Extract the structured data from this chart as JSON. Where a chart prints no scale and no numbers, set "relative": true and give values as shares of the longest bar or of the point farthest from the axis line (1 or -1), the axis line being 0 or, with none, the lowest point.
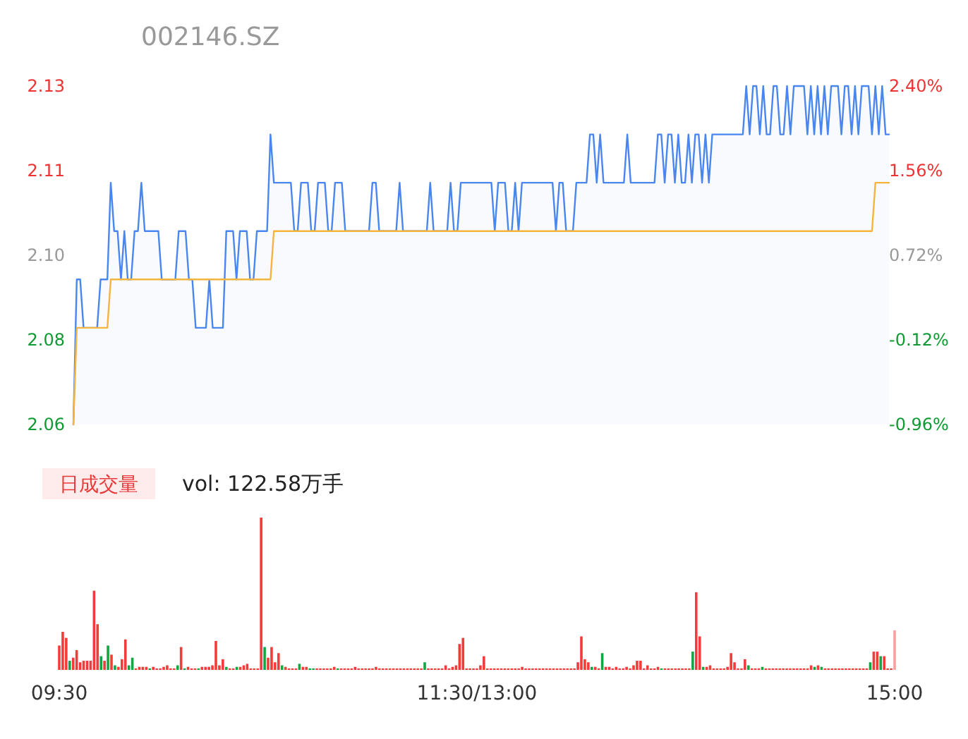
{
  "chart_data": [
    {
      "type": "area",
      "title": "002146.SZ",
      "ylim": [
        2.06,
        2.13
      ],
      "yticks": [
        2.06,
        {
          "value": 2.0775,
          "label": "2.08"
        },
        {
          "value": 2.095,
          "label": "2.10"
        },
        {
          "value": 2.1125,
          "label": "2.11"
        },
        2.13
      ],
      "y2lim": [
        -0.96,
        2.4
      ],
      "y2ticks": [
        {
          "value": -0.96,
          "label": "-0.96%"
        },
        {
          "value": -0.12,
          "label": "-0.12%"
        },
        {
          "value": 0.72,
          "label": "0.72%"
        },
        {
          "value": 1.56,
          "label": "1.56%"
        },
        {
          "value": 2.4,
          "label": "2.40%"
        }
      ],
      "tick_labels": "y",
      "categories": [
        null,
        null,
        null,
        null,
        null,
        null,
        null,
        null,
        null,
        null,
        null,
        null,
        null,
        null,
        null,
        null,
        null,
        null,
        null,
        null,
        null,
        null,
        null,
        null,
        null,
        null,
        null,
        null,
        null,
        null,
        null,
        null,
        null,
        null,
        null,
        null,
        null,
        null,
        null,
        null,
        null,
        null,
        null,
        null,
        null,
        null,
        null,
        null,
        null,
        null,
        null,
        null,
        null,
        null,
        null,
        null,
        null,
        null,
        null,
        null,
        null,
        null,
        null,
        null,
        null,
        null,
        null,
        null,
        null,
        null,
        null,
        null,
        null,
        null,
        null,
        null,
        null,
        null,
        null,
        null,
        null,
        null,
        null,
        null,
        null,
        null,
        null,
        null,
        null,
        null,
        null,
        null,
        null,
        null,
        null,
        null,
        null,
        null,
        null,
        null,
        null,
        null,
        null,
        null,
        null,
        null,
        null,
        null,
        null,
        null,
        null,
        null,
        null,
        null,
        null,
        null,
        null,
        null,
        null,
        null,
        null,
        null,
        null,
        null,
        null,
        null,
        null,
        null,
        null,
        null,
        null,
        null,
        null,
        null,
        null,
        null,
        null,
        null,
        null,
        null,
        null,
        null,
        null,
        null,
        null,
        null,
        null,
        null,
        null,
        null,
        null,
        null,
        null,
        null,
        null,
        null,
        null,
        null,
        null,
        null,
        null,
        null,
        null,
        null,
        null,
        null,
        null,
        null,
        null,
        null,
        null,
        null,
        null,
        null,
        null,
        null,
        null,
        null,
        null,
        null,
        null,
        null,
        null,
        null,
        null,
        null,
        null,
        null,
        null,
        null,
        null,
        null,
        null,
        null,
        null,
        null,
        null,
        null,
        null,
        null,
        null,
        null,
        null,
        null,
        null,
        null,
        null,
        null,
        null,
        null,
        null,
        null,
        null,
        null,
        null,
        null,
        null,
        null,
        null,
        null,
        null,
        null,
        null,
        null,
        null,
        null,
        null,
        null,
        null,
        null,
        null,
        null,
        null,
        null,
        null,
        null,
        null,
        null,
        null,
        null,
        null
      ],
      "series": [
        {
          "type": "area",
          "color": "#4a86f0",
          "values": [
            2.06,
            2.09,
            2.09,
            2.08,
            2.08,
            2.08,
            2.08,
            2.08,
            2.09,
            2.09,
            2.09,
            2.11,
            2.1,
            2.1,
            2.09,
            2.1,
            2.09,
            2.09,
            2.1,
            2.1,
            2.11,
            2.1,
            2.1,
            2.1,
            2.1,
            2.1,
            2.09,
            2.09,
            2.09,
            2.09,
            2.09,
            2.1,
            2.1,
            2.1,
            2.09,
            2.09,
            2.08,
            2.08,
            2.08,
            2.08,
            2.09,
            2.08,
            2.08,
            2.08,
            2.08,
            2.1,
            2.1,
            2.1,
            2.09,
            2.1,
            2.1,
            2.1,
            2.09,
            2.09,
            2.1,
            2.1,
            2.1,
            2.1,
            2.12,
            2.11,
            2.11,
            2.11,
            2.11,
            2.11,
            2.11,
            2.1,
            2.1,
            2.11,
            2.11,
            2.11,
            2.1,
            2.1,
            2.11,
            2.11,
            2.11,
            2.1,
            2.1,
            2.11,
            2.11,
            2.11,
            2.1,
            2.1,
            2.1,
            2.1,
            2.1,
            2.1,
            2.1,
            2.1,
            2.11,
            2.11,
            2.1,
            2.1,
            2.1,
            2.1,
            2.1,
            2.1,
            2.11,
            2.1,
            2.1,
            2.1,
            2.1,
            2.1,
            2.1,
            2.1,
            2.1,
            2.11,
            2.1,
            2.1,
            2.1,
            2.1,
            2.1,
            2.11,
            2.1,
            2.1,
            2.11,
            2.11,
            2.11,
            2.11,
            2.11,
            2.11,
            2.11,
            2.11,
            2.11,
            2.11,
            2.1,
            2.11,
            2.11,
            2.11,
            2.1,
            2.1,
            2.11,
            2.1,
            2.11,
            2.11,
            2.11,
            2.11,
            2.11,
            2.11,
            2.11,
            2.11,
            2.11,
            2.11,
            2.1,
            2.11,
            2.11,
            2.1,
            2.1,
            2.1,
            2.11,
            2.11,
            2.11,
            2.11,
            2.12,
            2.12,
            2.11,
            2.12,
            2.11,
            2.11,
            2.11,
            2.11,
            2.11,
            2.11,
            2.11,
            2.12,
            2.11,
            2.11,
            2.11,
            2.11,
            2.11,
            2.11,
            2.11,
            2.11,
            2.12,
            2.12,
            2.11,
            2.12,
            2.12,
            2.11,
            2.12,
            2.11,
            2.11,
            2.12,
            2.11,
            2.12,
            2.12,
            2.11,
            2.12,
            2.11,
            2.12,
            2.12,
            2.12,
            2.12,
            2.12,
            2.12,
            2.12,
            2.12,
            2.12,
            2.12,
            2.13,
            2.12,
            2.13,
            2.13,
            2.12,
            2.13,
            2.12,
            2.12,
            2.13,
            2.13,
            2.12,
            2.12,
            2.13,
            2.12,
            2.13,
            2.13,
            2.13,
            2.13,
            2.12,
            2.13,
            2.12,
            2.13,
            2.12,
            2.13,
            2.12,
            2.13,
            2.13,
            2.13,
            2.12,
            2.13,
            2.13,
            2.12,
            2.13,
            2.12,
            2.13,
            2.13,
            2.13,
            2.12,
            2.13,
            2.12,
            2.13,
            2.12,
            2.12
          ]
        },
        {
          "type": "line",
          "color": "#f5b53c",
          "values": [
            2.06,
            2.08,
            2.08,
            2.08,
            2.08,
            2.08,
            2.08,
            2.08,
            2.08,
            2.08,
            2.08,
            2.09,
            2.09,
            2.09,
            2.09,
            2.09,
            2.09,
            2.09,
            2.09,
            2.09,
            2.09,
            2.09,
            2.09,
            2.09,
            2.09,
            2.09,
            2.09,
            2.09,
            2.09,
            2.09,
            2.09,
            2.09,
            2.09,
            2.09,
            2.09,
            2.09,
            2.09,
            2.09,
            2.09,
            2.09,
            2.09,
            2.09,
            2.09,
            2.09,
            2.09,
            2.09,
            2.09,
            2.09,
            2.09,
            2.09,
            2.09,
            2.09,
            2.09,
            2.09,
            2.09,
            2.09,
            2.09,
            2.09,
            2.09,
            2.1,
            2.1,
            2.1,
            2.1,
            2.1,
            2.1,
            2.1,
            2.1,
            2.1,
            2.1,
            2.1,
            2.1,
            2.1,
            2.1,
            2.1,
            2.1,
            2.1,
            2.1,
            2.1,
            2.1,
            2.1,
            2.1,
            2.1,
            2.1,
            2.1,
            2.1,
            2.1,
            2.1,
            2.1,
            2.1,
            2.1,
            2.1,
            2.1,
            2.1,
            2.1,
            2.1,
            2.1,
            2.1,
            2.1,
            2.1,
            2.1,
            2.1,
            2.1,
            2.1,
            2.1,
            2.1,
            2.1,
            2.1,
            2.1,
            2.1,
            2.1,
            2.1,
            2.1,
            2.1,
            2.1,
            2.1,
            2.1,
            2.1,
            2.1,
            2.1,
            2.1,
            2.1,
            2.1,
            2.1,
            2.1,
            2.1,
            2.1,
            2.1,
            2.1,
            2.1,
            2.1,
            2.1,
            2.1,
            2.1,
            2.1,
            2.1,
            2.1,
            2.1,
            2.1,
            2.1,
            2.1,
            2.1,
            2.1,
            2.1,
            2.1,
            2.1,
            2.1,
            2.1,
            2.1,
            2.1,
            2.1,
            2.1,
            2.1,
            2.1,
            2.1,
            2.1,
            2.1,
            2.1,
            2.1,
            2.1,
            2.1,
            2.1,
            2.1,
            2.1,
            2.1,
            2.1,
            2.1,
            2.1,
            2.1,
            2.1,
            2.1,
            2.1,
            2.1,
            2.1,
            2.1,
            2.1,
            2.1,
            2.1,
            2.1,
            2.1,
            2.1,
            2.1,
            2.1,
            2.1,
            2.1,
            2.1,
            2.1,
            2.1,
            2.1,
            2.1,
            2.1,
            2.1,
            2.1,
            2.1,
            2.1,
            2.1,
            2.1,
            2.1,
            2.1,
            2.1,
            2.1,
            2.1,
            2.1,
            2.1,
            2.1,
            2.1,
            2.1,
            2.1,
            2.1,
            2.1,
            2.1,
            2.1,
            2.1,
            2.1,
            2.1,
            2.1,
            2.1,
            2.1,
            2.1,
            2.1,
            2.1,
            2.1,
            2.1,
            2.1,
            2.1,
            2.1,
            2.1,
            2.1,
            2.1,
            2.1,
            2.1,
            2.1,
            2.1,
            2.1,
            2.1,
            2.1,
            2.1,
            2.11,
            2.11,
            2.11,
            2.11,
            2.11
          ]
        }
      ]
    },
    {
      "type": "bar",
      "relative": true,
      "tick_labels": "x",
      "annotations": [
        "日成交量",
        "vol: 122.58万手"
      ],
      "categories": [
        "09:30",
        null,
        null,
        null,
        null,
        null,
        null,
        null,
        null,
        null,
        null,
        null,
        null,
        null,
        null,
        null,
        null,
        null,
        null,
        null,
        null,
        null,
        null,
        null,
        null,
        null,
        null,
        null,
        null,
        null,
        null,
        null,
        null,
        null,
        null,
        null,
        null,
        null,
        null,
        null,
        null,
        null,
        null,
        null,
        null,
        null,
        null,
        null,
        null,
        null,
        null,
        null,
        null,
        null,
        null,
        null,
        null,
        null,
        null,
        null,
        null,
        null,
        null,
        null,
        null,
        null,
        null,
        null,
        null,
        null,
        null,
        null,
        null,
        null,
        null,
        null,
        null,
        null,
        null,
        null,
        null,
        null,
        null,
        null,
        null,
        null,
        null,
        null,
        null,
        null,
        null,
        null,
        null,
        null,
        null,
        null,
        null,
        null,
        null,
        null,
        null,
        null,
        null,
        null,
        null,
        null,
        null,
        null,
        null,
        null,
        null,
        null,
        null,
        null,
        null,
        null,
        null,
        null,
        null,
        null,
        "11:30/13:00",
        null,
        null,
        null,
        null,
        null,
        null,
        null,
        null,
        null,
        null,
        null,
        null,
        null,
        null,
        null,
        null,
        null,
        null,
        null,
        null,
        null,
        null,
        null,
        null,
        null,
        null,
        null,
        null,
        null,
        null,
        null,
        null,
        null,
        null,
        null,
        null,
        null,
        null,
        null,
        null,
        null,
        null,
        null,
        null,
        null,
        null,
        null,
        null,
        null,
        null,
        null,
        null,
        null,
        null,
        null,
        null,
        null,
        null,
        null,
        null,
        null,
        null,
        null,
        null,
        null,
        null,
        null,
        null,
        null,
        null,
        null,
        null,
        null,
        null,
        null,
        null,
        null,
        null,
        null,
        null,
        null,
        null,
        null,
        null,
        null,
        null,
        null,
        null,
        null,
        null,
        null,
        null,
        null,
        null,
        null,
        null,
        null,
        null,
        null,
        null,
        null,
        null,
        null,
        null,
        null,
        null,
        null,
        null,
        null,
        null,
        null,
        null,
        null,
        null,
        null,
        null,
        null,
        null,
        null,
        "15:00"
      ],
      "values": [
        0.16,
        0.25,
        0.21,
        0.06,
        0.08,
        0.13,
        0.05,
        0.06,
        0.06,
        0.06,
        0.52,
        0.3,
        0.09,
        0.06,
        0.16,
        0.1,
        0.03,
        0.02,
        0.07,
        0.2,
        0.03,
        0.08,
        0.01,
        0.02,
        0.02,
        0.02,
        0.01,
        0.02,
        0.01,
        0.01,
        0.02,
        0.03,
        0.01,
        0.01,
        0.03,
        0.15,
        0.01,
        0.02,
        0.01,
        0.01,
        0.01,
        0.02,
        0.02,
        0.02,
        0.03,
        0.19,
        0.03,
        0.07,
        0.02,
        0.01,
        0.01,
        0.02,
        0.02,
        0.03,
        0.04,
        0.01,
        0.01,
        0.01,
        1,
        0.15,
        0.08,
        0.15,
        0.05,
        0.11,
        0.03,
        0.02,
        0.01,
        0.01,
        0.01,
        0.04,
        0.02,
        0.02,
        0.01,
        0.01,
        0.01,
        0.01,
        0.01,
        0.01,
        0.01,
        0.02,
        0.01,
        0.01,
        0.01,
        0.01,
        0.01,
        0.02,
        0.01,
        0.01,
        0.01,
        0.01,
        0.01,
        0.02,
        0.01,
        0.01,
        0.01,
        0.01,
        0.01,
        0.01,
        0.01,
        0.01,
        0.01,
        0.01,
        0.01,
        0.01,
        0.01,
        0.05,
        0.01,
        0.01,
        0.01,
        0.01,
        0.01,
        0.03,
        0.01,
        0.02,
        0.03,
        0.17,
        0.21,
        0.01,
        0.01,
        0.01,
        0.01,
        0.03,
        0.09,
        0.01,
        0.01,
        0.01,
        0.01,
        0.01,
        0.01,
        0.01,
        0.01,
        0.01,
        0.01,
        0.02,
        0.01,
        0.01,
        0.01,
        0.01,
        0.01,
        0.01,
        0.01,
        0.01,
        0.01,
        0.01,
        0.01,
        0.01,
        0.01,
        0.01,
        0.01,
        0.05,
        0.22,
        0.07,
        0.05,
        0.02,
        0.02,
        0.01,
        0.11,
        0.02,
        0.02,
        0.01,
        0.02,
        0.01,
        0.01,
        0.02,
        0.01,
        0.03,
        0.06,
        0.06,
        0.01,
        0.03,
        0.01,
        0.01,
        0.02,
        0.01,
        0.01,
        0.01,
        0.01,
        0.01,
        0.01,
        0.01,
        0.01,
        0.01,
        0.12,
        0.51,
        0.22,
        0.02,
        0.02,
        0.03,
        0.01,
        0.01,
        0.01,
        0.01,
        0.02,
        0.11,
        0.05,
        0.01,
        0.01,
        0.07,
        0.03,
        0.01,
        0.01,
        0.01,
        0.02,
        0.01,
        0.01,
        0.01,
        0.01,
        0.01,
        0.01,
        0.01,
        0.01,
        0.01,
        0.01,
        0.01,
        0.01,
        0.01,
        0.03,
        0.02,
        0.03,
        0.02,
        0.01,
        0.01,
        0.01,
        0.01,
        0.01,
        0.01,
        0.01,
        0.01,
        0.01,
        0.01,
        0.01,
        0.01,
        0.01,
        0.05,
        0.12,
        0.12,
        0.09,
        0.09,
        0.01,
        0.01,
        0.26
      ],
      "colors": [
        "#f23c3c",
        "#f23c3c",
        "#f23c3c",
        "#16a543",
        "#f23c3c",
        "#f23c3c",
        "#f23c3c",
        "#f23c3c",
        "#f23c3c",
        "#f23c3c",
        "#f23c3c",
        "#f23c3c",
        "#16a543",
        "#f23c3c",
        "#16a543",
        "#f23c3c",
        "#16a543",
        "#f23c3c",
        "#f23c3c",
        "#f23c3c",
        "#16a543",
        "#16a543",
        "#f23c3c",
        "#f23c3c",
        "#f23c3c",
        "#f23c3c",
        "#16a543",
        "#f23c3c",
        "#f23c3c",
        "#f23c3c",
        "#f23c3c",
        "#f23c3c",
        "#f23c3c",
        "#f23c3c",
        "#16a543",
        "#f23c3c",
        "#16a543",
        "#f23c3c",
        "#f23c3c",
        "#f23c3c",
        "#16a543",
        "#f23c3c",
        "#f23c3c",
        "#f23c3c",
        "#f23c3c",
        "#f23c3c",
        "#f23c3c",
        "#f23c3c",
        "#16a543",
        "#f23c3c",
        "#f23c3c",
        "#16a543",
        "#f23c3c",
        "#f23c3c",
        "#f23c3c",
        "#f23c3c",
        "#f23c3c",
        "#f23c3c",
        "#f23c3c",
        "#16a543",
        "#f23c3c",
        "#f23c3c",
        "#f23c3c",
        "#f23c3c",
        "#16a543",
        "#f23c3c",
        "#f23c3c",
        "#f23c3c",
        "#f23c3c",
        "#16a543",
        "#f23c3c",
        "#f23c3c",
        "#16a543",
        "#16a543",
        "#f23c3c",
        "#f23c3c",
        "#f23c3c",
        "#f23c3c",
        "#f23c3c",
        "#f23c3c",
        "#16a543",
        "#f23c3c",
        "#f23c3c",
        "#f23c3c",
        "#f23c3c",
        "#f23c3c",
        "#f23c3c",
        "#f23c3c",
        "#f23c3c",
        "#f23c3c",
        "#f23c3c",
        "#f23c3c",
        "#f23c3c",
        "#f23c3c",
        "#f23c3c",
        "#f23c3c",
        "#f23c3c",
        "#f23c3c",
        "#f23c3c",
        "#f23c3c",
        "#f23c3c",
        "#f23c3c",
        "#f23c3c",
        "#f23c3c",
        "#f23c3c",
        "#16a543",
        "#f23c3c",
        "#f23c3c",
        "#f23c3c",
        "#f23c3c",
        "#f23c3c",
        "#f23c3c",
        "#f23c3c",
        "#f23c3c",
        "#f23c3c",
        "#f23c3c",
        "#f23c3c",
        "#f23c3c",
        "#f23c3c",
        "#f23c3c",
        "#f23c3c",
        "#f23c3c",
        "#f23c3c",
        "#f23c3c",
        "#f23c3c",
        "#f23c3c",
        "#f23c3c",
        "#f23c3c",
        "#f23c3c",
        "#f23c3c",
        "#f23c3c",
        "#f23c3c",
        "#f23c3c",
        "#f23c3c",
        "#f23c3c",
        "#f23c3c",
        "#f23c3c",
        "#f23c3c",
        "#f23c3c",
        "#f23c3c",
        "#f23c3c",
        "#f23c3c",
        "#f23c3c",
        "#f23c3c",
        "#f23c3c",
        "#f23c3c",
        "#f23c3c",
        "#f23c3c",
        "#f23c3c",
        "#f23c3c",
        "#f23c3c",
        "#f23c3c",
        "#f23c3c",
        "#16a543",
        "#f23c3c",
        "#f23c3c",
        "#16a543",
        "#f23c3c",
        "#f23c3c",
        "#f23c3c",
        "#f23c3c",
        "#f23c3c",
        "#f23c3c",
        "#f23c3c",
        "#f23c3c",
        "#f23c3c",
        "#f23c3c",
        "#f23c3c",
        "#f23c3c",
        "#f23c3c",
        "#f23c3c",
        "#f23c3c",
        "#f23c3c",
        "#16a543",
        "#f23c3c",
        "#f23c3c",
        "#f23c3c",
        "#f23c3c",
        "#f23c3c",
        "#f23c3c",
        "#f23c3c",
        "#f23c3c",
        "#16a543",
        "#f23c3c",
        "#f23c3c",
        "#16a543",
        "#f23c3c",
        "#f23c3c",
        "#f23c3c",
        "#f23c3c",
        "#f23c3c",
        "#f23c3c",
        "#f23c3c",
        "#f23c3c",
        "#f23c3c",
        "#f23c3c",
        "#f23c3c",
        "#f23c3c",
        "#16a543",
        "#f23c3c",
        "#f23c3c",
        "#f23c3c",
        "#16a543",
        "#f23c3c",
        "#f23c3c",
        "#f23c3c",
        "#f23c3c",
        "#f23c3c",
        "#f23c3c",
        "#f23c3c",
        "#f23c3c",
        "#f23c3c",
        "#f23c3c",
        "#f23c3c",
        "#f23c3c",
        "#f23c3c",
        "#f23c3c",
        "#16a543",
        "#f23c3c",
        "#16a543",
        "#f23c3c",
        "#f23c3c",
        "#f23c3c",
        "#f23c3c",
        "#f23c3c",
        "#f23c3c",
        "#f23c3c",
        "#f23c3c",
        "#f23c3c",
        "#f23c3c",
        "#f23c3c",
        "#f23c3c",
        "#f23c3c",
        "#16a543",
        "#f23c3c",
        "#f23c3c",
        "#16a543",
        "#f23c3c",
        "#f23c3c",
        "#f23c3c",
        "#f9a0a0"
      ]
    }
  ]
}
